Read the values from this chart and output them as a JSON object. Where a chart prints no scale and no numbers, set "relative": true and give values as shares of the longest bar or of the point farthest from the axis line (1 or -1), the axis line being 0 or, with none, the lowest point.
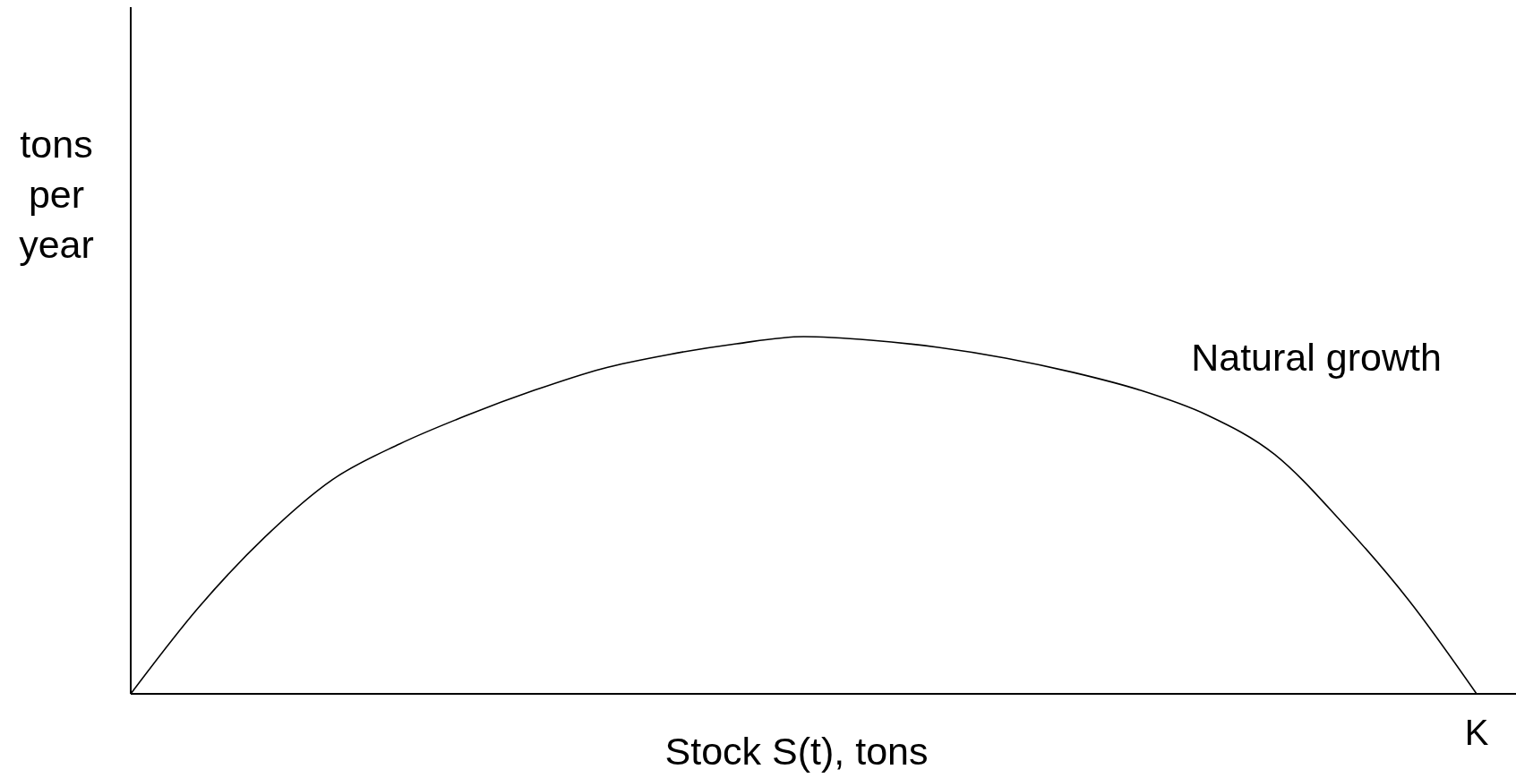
{
  "chart_data": {
    "type": "line",
    "relative": true,
    "xlabel": "Stock S(t), tons",
    "ylabel": "tons per year",
    "categories": [
      null,
      null,
      null,
      null,
      null,
      null,
      null,
      null,
      null,
      null,
      null,
      null,
      null,
      null,
      null,
      null,
      null,
      null,
      null,
      null,
      null
    ],
    "annotations": [
      "K"
    ],
    "series": [
      {
        "name": "Natural growth",
        "color": "#000000",
        "values": [
          0,
          0.24,
          0.44,
          0.6,
          0.7,
          0.78,
          0.85,
          0.91,
          0.95,
          0.98,
          1,
          0.99,
          0.97,
          0.94,
          0.9,
          0.85,
          0.78,
          0.67,
          0.48,
          0.26,
          0
        ]
      }
    ],
    "legend": false,
    "grid": false,
    "marker": "none",
    "line_style": "solid"
  }
}
